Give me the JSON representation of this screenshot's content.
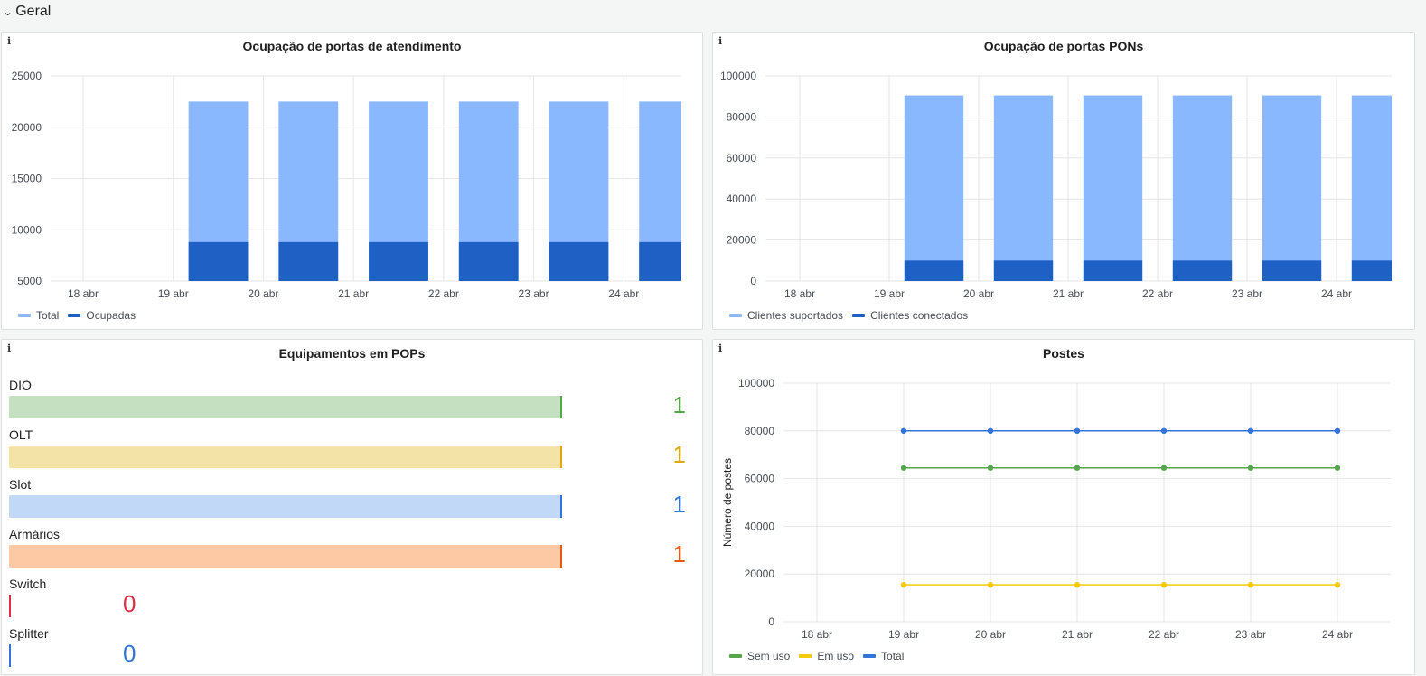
{
  "row": {
    "title": "Geral"
  },
  "panels": {
    "atendimento": {
      "title": "Ocupação de portas de atendimento",
      "legend": [
        "Total",
        "Ocupadas"
      ],
      "colors": [
        "#8ab8ff",
        "#1f60c4"
      ]
    },
    "pons": {
      "title": "Ocupação de portas PONs",
      "legend": [
        "Clientes suportados",
        "Clientes conectados"
      ],
      "colors": [
        "#8ab8ff",
        "#1f60c4"
      ]
    },
    "pops": {
      "title": "Equipamentos em POPs",
      "items": [
        {
          "label": "DIO",
          "value": "1",
          "color": "#56a64b",
          "bg": "#c4e0c0"
        },
        {
          "label": "OLT",
          "value": "1",
          "color": "#e0a70c",
          "bg": "#f4e3a6"
        },
        {
          "label": "Slot",
          "value": "1",
          "color": "#3274d9",
          "bg": "#c2d8f7"
        },
        {
          "label": "Armários",
          "value": "1",
          "color": "#e55a14",
          "bg": "#fdc9a4"
        },
        {
          "label": "Switch",
          "value": "0",
          "color": "#e02f44",
          "bg": "#fcc5cd"
        },
        {
          "label": "Splitter",
          "value": "0",
          "color": "#3274d9",
          "bg": "#c2d8f7"
        }
      ]
    },
    "postes": {
      "title": "Postes",
      "legend": [
        "Sem uso",
        "Em uso",
        "Total"
      ],
      "colors": [
        "#56a64b",
        "#f2cc0c",
        "#3274d9"
      ]
    }
  },
  "chart_data": [
    {
      "id": "atendimento",
      "type": "bar",
      "title": "Ocupação de portas de atendimento",
      "categories": [
        "18 abr",
        "19 abr",
        "20 abr",
        "21 abr",
        "22 abr",
        "23 abr",
        "24 abr"
      ],
      "yticks": [
        "5000",
        "10000",
        "15000",
        "20000",
        "25000"
      ],
      "ylim": [
        5000,
        25000
      ],
      "series": [
        {
          "name": "Total",
          "values": [
            null,
            22500,
            22500,
            22500,
            22500,
            22500,
            22500
          ]
        },
        {
          "name": "Ocupadas",
          "values": [
            null,
            8800,
            8800,
            8800,
            8800,
            8800,
            8800
          ]
        }
      ]
    },
    {
      "id": "pons",
      "type": "bar",
      "title": "Ocupação de portas PONs",
      "categories": [
        "18 abr",
        "19 abr",
        "20 abr",
        "21 abr",
        "22 abr",
        "23 abr",
        "24 abr"
      ],
      "yticks": [
        "0",
        "20000",
        "40000",
        "60000",
        "80000",
        "100000"
      ],
      "ylim": [
        0,
        100000
      ],
      "series": [
        {
          "name": "Clientes suportados",
          "values": [
            null,
            90500,
            90500,
            90500,
            90500,
            90500,
            90500
          ]
        },
        {
          "name": "Clientes conectados",
          "values": [
            null,
            10000,
            10000,
            10000,
            10000,
            10000,
            10000
          ]
        }
      ]
    },
    {
      "id": "postes",
      "type": "line",
      "title": "Postes",
      "ylabel": "Número de postes",
      "categories": [
        "18 abr",
        "19 abr",
        "20 abr",
        "21 abr",
        "22 abr",
        "23 abr",
        "24 abr"
      ],
      "yticks": [
        "0",
        "20000",
        "40000",
        "60000",
        "80000",
        "100000"
      ],
      "ylim": [
        0,
        100000
      ],
      "series": [
        {
          "name": "Sem uso",
          "values": [
            null,
            64500,
            64500,
            64500,
            64500,
            64500,
            64500
          ]
        },
        {
          "name": "Em uso",
          "values": [
            null,
            15500,
            15500,
            15500,
            15500,
            15500,
            15500
          ]
        },
        {
          "name": "Total",
          "values": [
            null,
            80000,
            80000,
            80000,
            80000,
            80000,
            80000
          ]
        }
      ]
    }
  ]
}
